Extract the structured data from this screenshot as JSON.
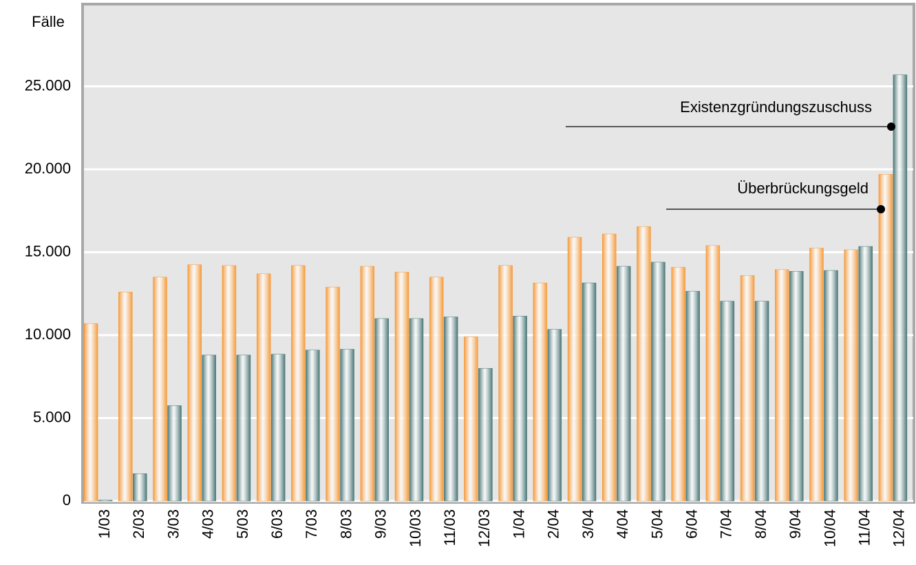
{
  "chart_data": {
    "type": "bar",
    "y_label": "Fälle",
    "categories": [
      "1/03",
      "2/03",
      "3/03",
      "4/03",
      "5/03",
      "6/03",
      "7/03",
      "8/03",
      "9/03",
      "10/03",
      "11/03",
      "12/03",
      "1/04",
      "2/04",
      "3/04",
      "4/04",
      "5/04",
      "6/04",
      "7/04",
      "8/04",
      "9/04",
      "10/04",
      "11/04",
      "12/04"
    ],
    "series": [
      {
        "name": "Überbrückungsgeld",
        "color": "#f59a3a",
        "values": [
          10700,
          12600,
          13500,
          14250,
          14200,
          13700,
          14200,
          12900,
          14150,
          13800,
          13500,
          9900,
          14200,
          13150,
          15900,
          16100,
          16550,
          14100,
          15400,
          13600,
          13950,
          15250,
          15150,
          19700
        ]
      },
      {
        "name": "Existenzgründungszuschuss",
        "color": "#4a7676",
        "values": [
          50,
          1650,
          5750,
          8800,
          8800,
          8850,
          9100,
          9150,
          11000,
          11000,
          11100,
          8000,
          11150,
          10350,
          13150,
          14150,
          14400,
          12650,
          12050,
          12050,
          13850,
          13900,
          15350,
          25700
        ]
      }
    ],
    "ylim": [
      0,
      30000
    ],
    "yticks": [
      0,
      {
        "value": 5000,
        "label": "5.000"
      },
      {
        "value": 10000,
        "label": "10.000"
      },
      {
        "value": 15000,
        "label": "15.000"
      },
      {
        "value": 20000,
        "label": "20.000"
      },
      {
        "value": 25000,
        "label": "25.000"
      }
    ],
    "grid": true
  }
}
